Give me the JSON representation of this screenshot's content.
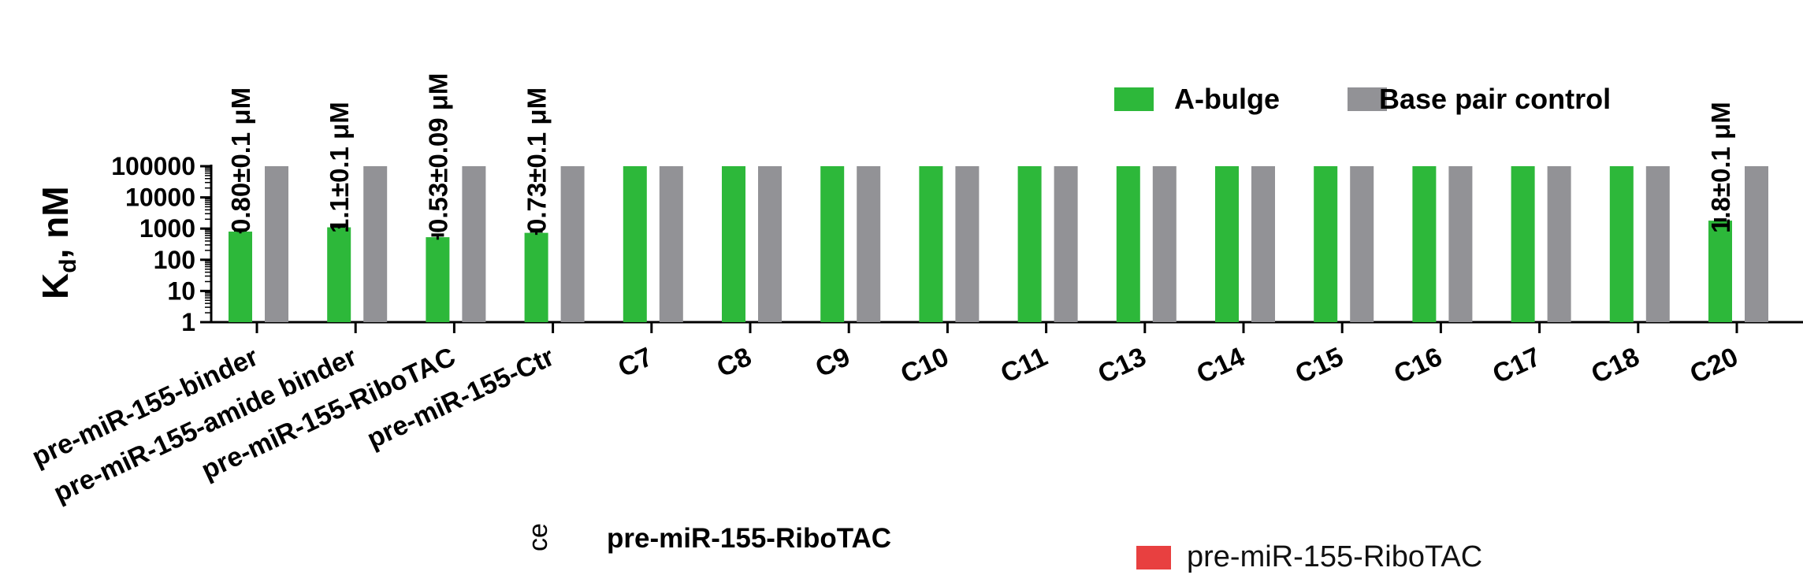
{
  "chart_data": {
    "type": "bar",
    "ylabel_main": "K",
    "ylabel_sub": "d",
    "ylabel_rest": ", nM",
    "yscale": "log",
    "ylim": [
      1,
      100000
    ],
    "yticks": [
      "1",
      "10",
      "100",
      "1000",
      "10000",
      "100000"
    ],
    "categories": [
      "pre-miR-155-binder",
      "pre-miR-155-amide binder",
      "pre-miR-155-RiboTAC",
      "pre-miR-155-Ctr",
      "C7",
      "C8",
      "C9",
      "C10",
      "C11",
      "C13",
      "C14",
      "C15",
      "C16",
      "C17",
      "C18",
      "C20"
    ],
    "series": [
      {
        "name": "A-bulge",
        "color": "#2db83a",
        "values": [
          800,
          1100,
          530,
          730,
          100000,
          100000,
          100000,
          100000,
          100000,
          100000,
          100000,
          100000,
          100000,
          100000,
          100000,
          1800
        ],
        "errors": [
          100,
          100,
          90,
          100,
          0,
          0,
          0,
          0,
          0,
          0,
          0,
          0,
          0,
          0,
          0,
          100
        ]
      },
      {
        "name": "Base pair control",
        "color": "#929296",
        "values": [
          100000,
          100000,
          100000,
          100000,
          100000,
          100000,
          100000,
          100000,
          100000,
          100000,
          100000,
          100000,
          100000,
          100000,
          100000,
          100000
        ]
      }
    ],
    "annotations": [
      {
        "index": 0,
        "text": "0.80±0.1 μM"
      },
      {
        "index": 1,
        "text": "1.1±0.1 μM"
      },
      {
        "index": 2,
        "text": "0.53±0.09 μM"
      },
      {
        "index": 3,
        "text": "0.73±0.1 μM"
      },
      {
        "index": 15,
        "text": "1.8±0.1 μM"
      }
    ],
    "legend_position": "top-right"
  },
  "bottom": {
    "title": "pre-miR-155-RiboTAC",
    "legend_label": "pre-miR-155-RiboTAC",
    "legend_color": "#e84040",
    "cut_text": "ce"
  }
}
